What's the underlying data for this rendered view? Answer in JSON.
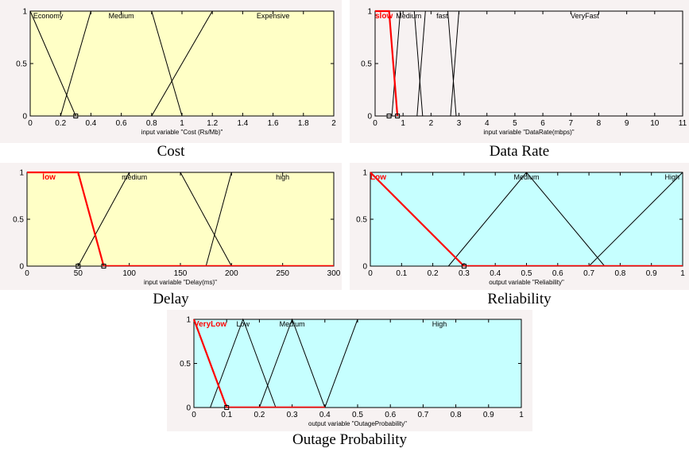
{
  "panel_bg": "#f7f2f2",
  "colors": {
    "yellow_plot": "#ffffc6",
    "cyan_plot": "#c6ffff",
    "line": "#000000",
    "highlight": "#ff0000",
    "label": "#000000"
  },
  "chart_data": [
    {
      "type": "line",
      "caption": "Cost",
      "xlabel": "input variable \"Cost (Rs/Mb)\"",
      "xlim": [
        0,
        2
      ],
      "ylim": [
        0,
        1
      ],
      "xticks": [
        0,
        0.2,
        0.4,
        0.6,
        0.8,
        1,
        1.2,
        1.4,
        1.6,
        1.8,
        2
      ],
      "xtick_labels": [
        "0",
        "0.2",
        "0.4",
        "0.6",
        "0.8",
        "1",
        "1.2",
        "1.4",
        "1.6",
        "1.8",
        "2"
      ],
      "yticks": [
        0,
        0.5,
        1
      ],
      "ytick_labels": [
        "0",
        "0.5",
        "1"
      ],
      "plot_bg": "#ffffc6",
      "series": [
        {
          "name": "Economy",
          "x": [
            0,
            0.3,
            2
          ],
          "y": [
            1,
            0,
            0
          ],
          "highlight": false,
          "label_at": 0.02,
          "label_align": "start"
        },
        {
          "name": "Medium",
          "x": [
            0.2,
            0.4,
            0.8,
            1.0
          ],
          "y": [
            0,
            1,
            1,
            0
          ],
          "highlight": false,
          "label_at": 0.6,
          "label_align": "middle"
        },
        {
          "name": "Expensive",
          "x": [
            0.8,
            1.2,
            2.0
          ],
          "y": [
            0,
            1,
            1
          ],
          "highlight": false,
          "label_at": 1.6,
          "label_align": "middle"
        }
      ],
      "marker_x": [
        0.3
      ]
    },
    {
      "type": "line",
      "caption": "Data Rate",
      "xlabel": "input variable \"DataRate(mbps)\"",
      "xlim": [
        0,
        11
      ],
      "ylim": [
        0,
        1
      ],
      "xticks": [
        0,
        1,
        2,
        3,
        4,
        5,
        6,
        7,
        8,
        9,
        10,
        11
      ],
      "xtick_labels": [
        "0",
        "1",
        "2",
        "3",
        "4",
        "5",
        "6",
        "7",
        "8",
        "9",
        "10",
        "11"
      ],
      "yticks": [
        0,
        0.5,
        1
      ],
      "ytick_labels": [
        "0",
        "0.5",
        "1"
      ],
      "plot_bg": "#f7f2f2",
      "series": [
        {
          "name": "slow",
          "x": [
            0,
            0.5,
            0.8
          ],
          "y": [
            1,
            1,
            0
          ],
          "highlight": true,
          "label_at": 0.0,
          "label_align": "start"
        },
        {
          "name": "Medium",
          "x": [
            0.6,
            0.9,
            1.4,
            1.7
          ],
          "y": [
            0,
            1,
            1,
            0
          ],
          "highlight": false,
          "label_at": 1.2,
          "label_align": "middle"
        },
        {
          "name": "fast",
          "x": [
            1.5,
            1.8,
            2.6,
            2.9
          ],
          "y": [
            0,
            1,
            1,
            0
          ],
          "highlight": false,
          "label_at": 2.4,
          "label_align": "middle"
        },
        {
          "name": "VeryFast",
          "x": [
            2.7,
            3.0,
            11
          ],
          "y": [
            0,
            1,
            1
          ],
          "highlight": false,
          "label_at": 7.5,
          "label_align": "middle"
        }
      ],
      "marker_x": [
        0.5,
        0.8
      ]
    },
    {
      "type": "line",
      "caption": "Delay",
      "xlabel": "input variable \"Delay(ms)\"",
      "xlim": [
        0,
        300
      ],
      "ylim": [
        0,
        1
      ],
      "xticks": [
        0,
        50,
        100,
        150,
        200,
        250,
        300
      ],
      "xtick_labels": [
        "0",
        "50",
        "100",
        "150",
        "200",
        "250",
        "300"
      ],
      "yticks": [
        0,
        0.5,
        1
      ],
      "ytick_labels": [
        "0",
        "0.5",
        "1"
      ],
      "plot_bg": "#ffffc6",
      "series": [
        {
          "name": "low",
          "x": [
            0,
            50,
            75
          ],
          "y": [
            1,
            1,
            0
          ],
          "highlight": true,
          "label_at": 15,
          "label_align": "start"
        },
        {
          "name": "medium",
          "x": [
            50,
            100,
            150,
            200
          ],
          "y": [
            0,
            1,
            1,
            0
          ],
          "highlight": false,
          "label_at": 105,
          "label_align": "middle"
        },
        {
          "name": "high",
          "x": [
            175,
            200,
            300
          ],
          "y": [
            0,
            1,
            1
          ],
          "highlight": false,
          "label_at": 250,
          "label_align": "middle"
        }
      ],
      "highlight_segments": [
        [
          75,
          0,
          300,
          0
        ]
      ],
      "marker_x": [
        50,
        75
      ]
    },
    {
      "type": "line",
      "caption": "Reliability",
      "xlabel": "output variable \"Reliability\"",
      "xlim": [
        0,
        1
      ],
      "ylim": [
        0,
        1
      ],
      "xticks": [
        0,
        0.1,
        0.2,
        0.3,
        0.4,
        0.5,
        0.6,
        0.7,
        0.8,
        0.9,
        1
      ],
      "xtick_labels": [
        "0",
        "0.1",
        "0.2",
        "0.3",
        "0.4",
        "0.5",
        "0.6",
        "0.7",
        "0.8",
        "0.9",
        "1"
      ],
      "yticks": [
        0,
        0.5,
        1
      ],
      "ytick_labels": [
        "0",
        "0.5",
        "1"
      ],
      "plot_bg": "#c6ffff",
      "series": [
        {
          "name": "Low",
          "x": [
            0,
            0.3
          ],
          "y": [
            1,
            0
          ],
          "highlight": true,
          "label_at": 0.0,
          "label_align": "start"
        },
        {
          "name": "Medium",
          "x": [
            0.25,
            0.5,
            0.75
          ],
          "y": [
            0,
            1,
            0
          ],
          "highlight": false,
          "label_at": 0.5,
          "label_align": "middle"
        },
        {
          "name": "High",
          "x": [
            0.7,
            1.0
          ],
          "y": [
            0,
            1
          ],
          "highlight": false,
          "label_at": 0.99,
          "label_align": "end"
        }
      ],
      "highlight_segments": [
        [
          0.3,
          0,
          1,
          0
        ]
      ],
      "marker_x": [
        0.3
      ]
    },
    {
      "type": "line",
      "caption": "Outage Probability",
      "xlabel": "output variable \"OutageProbability\"",
      "xlim": [
        0,
        1
      ],
      "ylim": [
        0,
        1
      ],
      "xticks": [
        0,
        0.1,
        0.2,
        0.3,
        0.4,
        0.5,
        0.6,
        0.7,
        0.8,
        0.9,
        1
      ],
      "xtick_labels": [
        "0",
        "0.1",
        "0.2",
        "0.3",
        "0.4",
        "0.5",
        "0.6",
        "0.7",
        "0.8",
        "0.9",
        "1"
      ],
      "yticks": [
        0,
        0.5,
        1
      ],
      "ytick_labels": [
        "0",
        "0.5",
        "1"
      ],
      "plot_bg": "#c6ffff",
      "series": [
        {
          "name": "VeryLow",
          "x": [
            0,
            0.1
          ],
          "y": [
            1,
            0
          ],
          "highlight": true,
          "label_at": 0.0,
          "label_align": "start"
        },
        {
          "name": "Low",
          "x": [
            0.05,
            0.15,
            0.25
          ],
          "y": [
            0,
            1,
            0
          ],
          "highlight": false,
          "label_at": 0.15,
          "label_align": "middle"
        },
        {
          "name": "Medium",
          "x": [
            0.2,
            0.3,
            0.4
          ],
          "y": [
            0,
            1,
            0
          ],
          "highlight": false,
          "label_at": 0.3,
          "label_align": "middle"
        },
        {
          "name": "High",
          "x": [
            0.4,
            0.5,
            1.0
          ],
          "y": [
            0,
            1,
            1
          ],
          "highlight": false,
          "label_at": 0.75,
          "label_align": "middle"
        }
      ],
      "highlight_segments": [
        [
          0.1,
          0,
          0.4,
          0
        ]
      ],
      "marker_x": [
        0.1
      ]
    }
  ]
}
